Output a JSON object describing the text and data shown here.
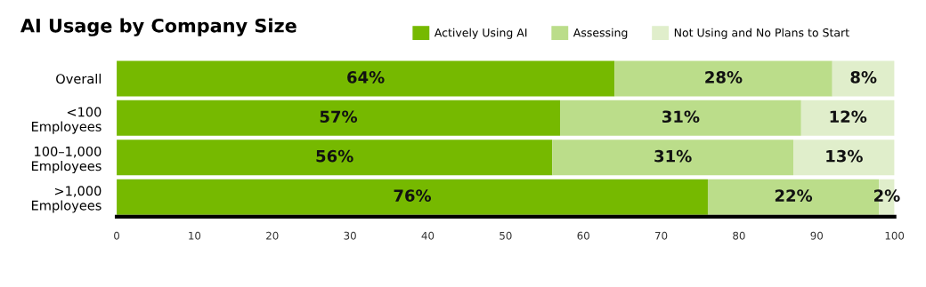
{
  "chart_data": {
    "type": "bar",
    "orientation": "horizontal",
    "stacked": true,
    "title": "AI Usage by Company Size",
    "categories": [
      "Overall",
      "<100\nEmployees",
      "100–1,000\nEmployees",
      ">1,000\nEmployees"
    ],
    "series": [
      {
        "name": "Actively Using AI",
        "color": "#76b900",
        "values": [
          64,
          57,
          56,
          76
        ],
        "value_labels": [
          "64%",
          "57%",
          "56%",
          "76%"
        ]
      },
      {
        "name": "Assessing",
        "color": "#bbdd8a",
        "values": [
          28,
          31,
          31,
          22
        ],
        "value_labels": [
          "28%",
          "31%",
          "31%",
          "22%"
        ]
      },
      {
        "name": "Not Using and No Plans to Start",
        "color": "#e0eecb",
        "values": [
          8,
          12,
          13,
          2
        ],
        "value_labels": [
          "8%",
          "12%",
          "13%",
          "2%"
        ]
      }
    ],
    "xlim": [
      0,
      100
    ],
    "xticks": [
      0,
      10,
      20,
      30,
      40,
      50,
      60,
      70,
      80,
      90,
      100
    ],
    "grid": false,
    "legend": "top right"
  }
}
